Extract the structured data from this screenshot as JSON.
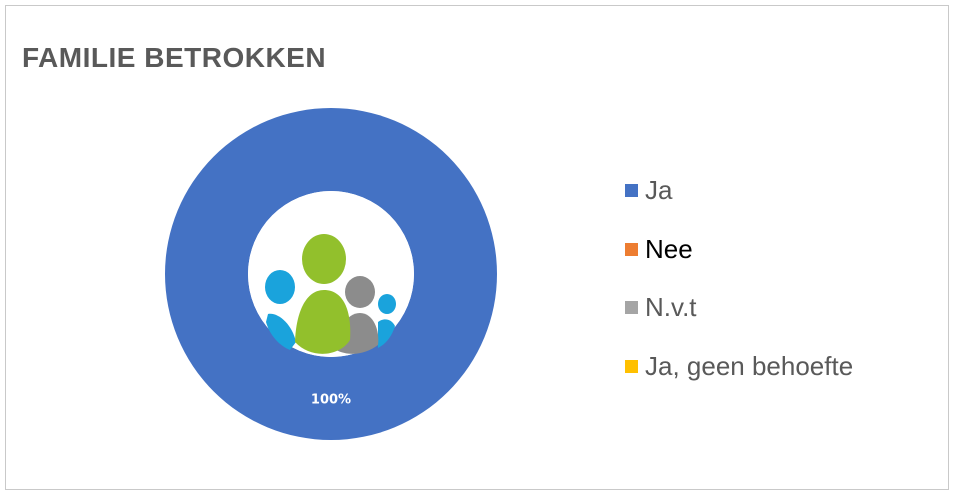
{
  "chart_data": {
    "type": "pie",
    "variant": "donut",
    "title": "FAMILIE BETROKKEN",
    "categories": [
      "Ja",
      "Nee",
      "N.v.t",
      "Ja, geen behoefte"
    ],
    "values": [
      100,
      0,
      0,
      0
    ],
    "data_labels": [
      "100%"
    ],
    "colors": [
      "#4472C4",
      "#ED7D31",
      "#A5A5A5",
      "#FFC000"
    ],
    "legend_placement": "right",
    "center_icon": "family-icon"
  },
  "legend_label_colors": [
    "#595959",
    "#000000",
    "#595959",
    "#595959"
  ]
}
